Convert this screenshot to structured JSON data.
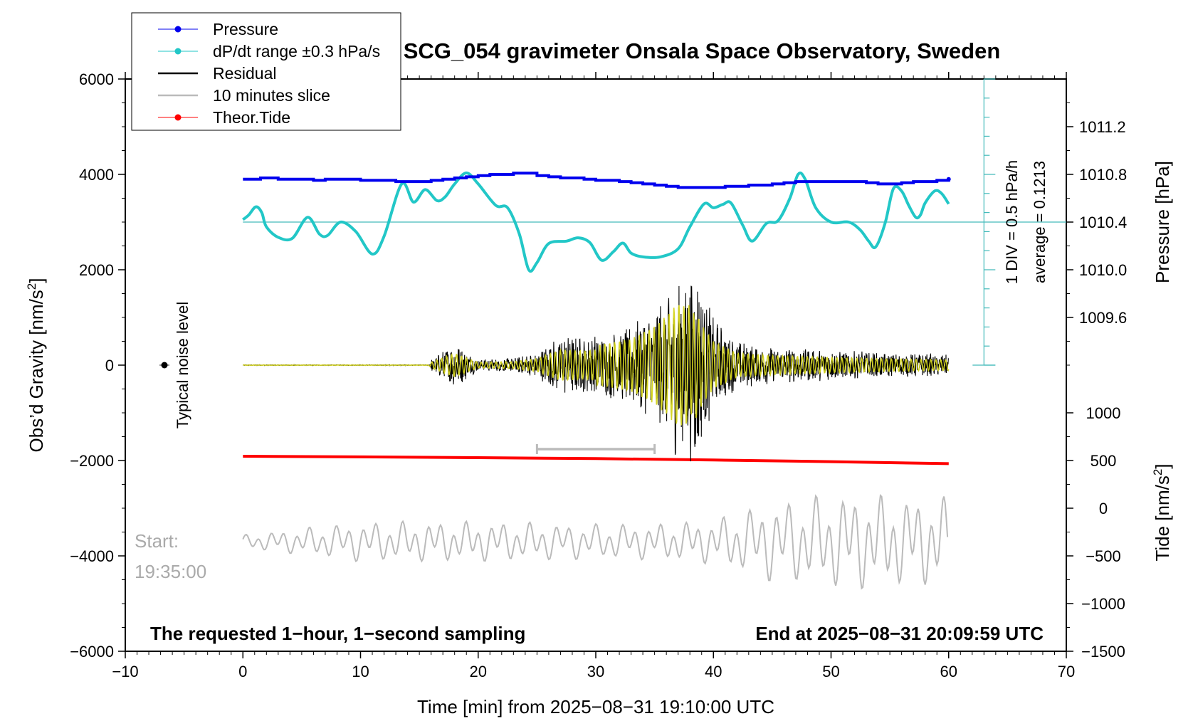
{
  "colors": {
    "pressure": "#0000ee",
    "dpdt": "#22c7c7",
    "refline": "#44bbbb",
    "residual": "#000000",
    "overlay": "#d4d41e",
    "slice": "#bbbbbb",
    "tide": "#ff0000",
    "axis": "#000000"
  },
  "chart_data": {
    "type": "line",
    "title": "SCG_054 gravimeter Onsala Space Observatory, Sweden",
    "xlabel": "Time [min] from 2025−08−31 19:10:00 UTC",
    "ylabel_left": "Obs’d Gravity [nm/s",
    "ylabel_left_sup": "2",
    "ylabel_left_end": "]",
    "ylabel_right_top": "Pressure [hPa]",
    "ylabel_right_bottom": "Tide [nm/s",
    "ylabel_right_bottom_sup": "2",
    "ylabel_right_bottom_end": "]",
    "xlim": [
      -10,
      70
    ],
    "ylim_left": [
      -6000,
      6000
    ],
    "ylim_pressure": [
      1009.2,
      1011.6
    ],
    "ylim_tide": [
      -1500,
      1000
    ],
    "x_ticks": [
      "−10",
      "0",
      "10",
      "20",
      "30",
      "40",
      "50",
      "60",
      "70"
    ],
    "y_ticks_left": [
      "6000",
      "4000",
      "2000",
      "0",
      "−2000",
      "−4000",
      "−6000"
    ],
    "y_ticks_pressure": [
      "1011.2",
      "1010.8",
      "1010.4",
      "1010.0",
      "1009.6"
    ],
    "y_ticks_tide": [
      "1000",
      "500",
      "0",
      "−500",
      "−1000",
      "−1500"
    ],
    "legend": [
      "Pressure",
      "dP/dt range ±0.3 hPa/s",
      "Residual",
      "10 minutes slice",
      "Theor.Tide"
    ],
    "legend_position": "top-left",
    "annotations": {
      "noise": "Typical noise level",
      "div": "1 DIV = 0.5 hPa/h",
      "average": "average = 0.1213",
      "start_label": "Start:",
      "start_time": "19:35:00",
      "footer_left": "The requested 1−hour, 1−second sampling",
      "footer_right": "End at 2025−08−31 20:09:59 UTC"
    },
    "slice_window_min": [
      25,
      35
    ],
    "series": [
      {
        "name": "Pressure",
        "axis": "pressure_hPa",
        "x": [
          0,
          1,
          1.5,
          2,
          3,
          4,
          5,
          6,
          7,
          8,
          9,
          10,
          11,
          12,
          13,
          14,
          15,
          16,
          17,
          18,
          19,
          20,
          21,
          22,
          23,
          24,
          25,
          26,
          27,
          28,
          29,
          30,
          31,
          32,
          33,
          34,
          35,
          36,
          37,
          38,
          39,
          40,
          41,
          42,
          43,
          44,
          45,
          46,
          47,
          48,
          49,
          50,
          51,
          52,
          53,
          54,
          55,
          56,
          57,
          58,
          59,
          60
        ],
        "values": [
          1010.76,
          1010.76,
          1010.77,
          1010.77,
          1010.76,
          1010.76,
          1010.76,
          1010.75,
          1010.76,
          1010.76,
          1010.76,
          1010.75,
          1010.75,
          1010.75,
          1010.74,
          1010.74,
          1010.74,
          1010.75,
          1010.76,
          1010.77,
          1010.78,
          1010.79,
          1010.8,
          1010.8,
          1010.81,
          1010.81,
          1010.79,
          1010.78,
          1010.77,
          1010.77,
          1010.76,
          1010.75,
          1010.75,
          1010.74,
          1010.73,
          1010.72,
          1010.71,
          1010.7,
          1010.69,
          1010.69,
          1010.69,
          1010.69,
          1010.7,
          1010.7,
          1010.71,
          1010.71,
          1010.72,
          1010.73,
          1010.74,
          1010.74,
          1010.74,
          1010.74,
          1010.74,
          1010.74,
          1010.73,
          1010.72,
          1010.72,
          1010.73,
          1010.74,
          1010.74,
          1010.75,
          1010.76
        ]
      },
      {
        "name": "dP/dt range ±0.3 hPa/s",
        "axis": "gravity_nm_s2",
        "x": [
          0,
          0.5,
          1.1,
          1.6,
          2,
          3,
          4.2,
          5.5,
          6.5,
          7.2,
          8.3,
          9.6,
          11,
          12,
          13.5,
          14.5,
          15.5,
          16.5,
          17.2,
          18,
          19,
          20,
          21.5,
          22.5,
          23.5,
          24.3,
          25,
          26,
          27.5,
          28.5,
          29.5,
          30.5,
          31.5,
          32.3,
          33,
          34,
          35.5,
          37,
          38,
          39.2,
          40,
          40.8,
          41.5,
          42.5,
          43.3,
          44.5,
          45.5,
          46.5,
          47.2,
          47.8,
          48.7,
          50,
          51.5,
          52.5,
          53.2,
          53.8,
          54.6,
          55.3,
          56,
          56.6,
          57.2,
          57.6,
          58,
          58.8,
          59.4,
          60
        ],
        "values": [
          3050,
          3150,
          3320,
          3200,
          2900,
          2680,
          2660,
          3100,
          2750,
          2720,
          3000,
          2800,
          2330,
          2700,
          3800,
          3420,
          3680,
          3450,
          3530,
          3800,
          4030,
          3800,
          3350,
          3300,
          2750,
          2000,
          2150,
          2550,
          2600,
          2670,
          2570,
          2200,
          2380,
          2560,
          2350,
          2270,
          2270,
          2440,
          2900,
          3380,
          3300,
          3370,
          3400,
          2930,
          2600,
          2970,
          3030,
          3500,
          4000,
          3900,
          3300,
          3000,
          3000,
          2830,
          2600,
          2480,
          2980,
          3700,
          3650,
          3350,
          3100,
          3150,
          3400,
          3650,
          3600,
          3380
        ]
      },
      {
        "name": "Theor.Tide",
        "axis": "tide_nm_s2",
        "x": [
          0,
          10,
          20,
          30,
          40,
          50,
          60
        ],
        "values": [
          545,
          538,
          530,
          520,
          505,
          488,
          467
        ]
      },
      {
        "name": "Residual",
        "axis": "gravity_nm_s2",
        "envelope_x": [
          0,
          15.8,
          16,
          18,
          19,
          20,
          23,
          25,
          27,
          29,
          31,
          33,
          35,
          36,
          37,
          37.5,
          38,
          38.5,
          39,
          40,
          42,
          45,
          50,
          55,
          60
        ],
        "envelope_amplitude": [
          8,
          8,
          120,
          500,
          300,
          120,
          150,
          270,
          650,
          600,
          700,
          850,
          1250,
          1600,
          2000,
          1900,
          2000,
          2300,
          1700,
          1000,
          500,
          400,
          320,
          260,
          220
        ]
      },
      {
        "name": "10 minutes slice",
        "axis": "gravity_nm_s2",
        "envelope_x": [
          0,
          10,
          20,
          30,
          35,
          40,
          45,
          48,
          52,
          56,
          60
        ],
        "envelope_amplitude": [
          150,
          450,
          450,
          400,
          400,
          500,
          900,
          1000,
          1100,
          1000,
          1000
        ]
      }
    ]
  }
}
